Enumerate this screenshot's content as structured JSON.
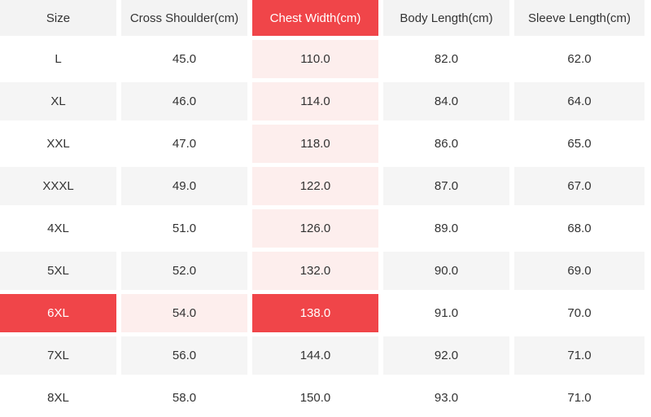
{
  "table": {
    "columns": [
      {
        "label": "Size"
      },
      {
        "label": "Cross Shoulder(cm)"
      },
      {
        "label": "Chest Width(cm)",
        "selected": true
      },
      {
        "label": "Body Length(cm)"
      },
      {
        "label": "Sleeve Length(cm)"
      }
    ],
    "rows": [
      {
        "size": "L",
        "values": [
          "45.0",
          "110.0",
          "82.0",
          "62.0"
        ]
      },
      {
        "size": "XL",
        "values": [
          "46.0",
          "114.0",
          "84.0",
          "64.0"
        ]
      },
      {
        "size": "XXL",
        "values": [
          "47.0",
          "118.0",
          "86.0",
          "65.0"
        ]
      },
      {
        "size": "XXXL",
        "values": [
          "49.0",
          "122.0",
          "87.0",
          "67.0"
        ]
      },
      {
        "size": "4XL",
        "values": [
          "51.0",
          "126.0",
          "89.0",
          "68.0"
        ]
      },
      {
        "size": "5XL",
        "values": [
          "52.0",
          "132.0",
          "90.0",
          "69.0"
        ]
      },
      {
        "size": "6XL",
        "values": [
          "54.0",
          "138.0",
          "91.0",
          "70.0"
        ],
        "selected": true
      },
      {
        "size": "7XL",
        "values": [
          "56.0",
          "144.0",
          "92.0",
          "71.0"
        ]
      },
      {
        "size": "8XL",
        "values": [
          "58.0",
          "150.0",
          "93.0",
          "71.0"
        ]
      }
    ],
    "selection": {
      "row": "6XL",
      "column": "Chest Width(cm)",
      "value": "138.0"
    }
  },
  "colors": {
    "accent_red": "#f04549",
    "highlight_pink": "#fdeeed",
    "stripe_gray": "#f5f5f5",
    "header_gray": "#f3f3f3",
    "text": "#333333"
  }
}
